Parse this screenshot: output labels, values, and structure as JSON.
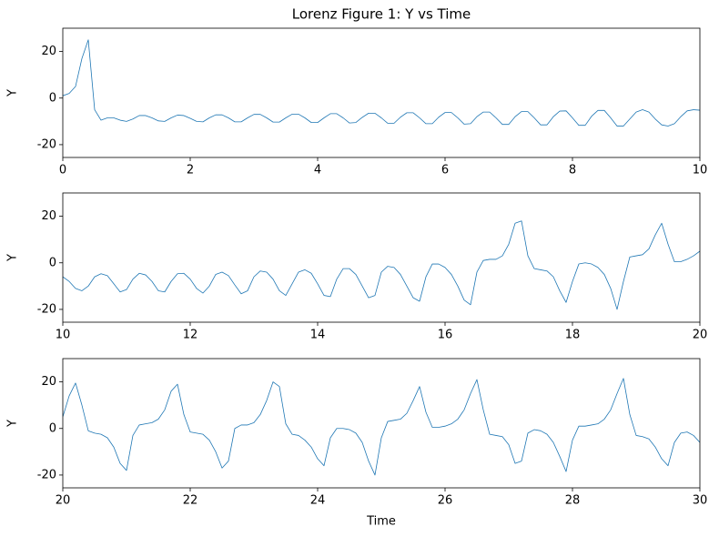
{
  "chart_data": [
    {
      "type": "line",
      "title": "Lorenz Figure 1: Y vs Time",
      "ylabel": "Y",
      "xlim": [
        0,
        10
      ],
      "ylim": [
        -25.5,
        30
      ],
      "xticks": [
        0,
        2,
        4,
        6,
        8,
        10
      ],
      "yticks": [
        -20,
        0,
        20
      ],
      "x": [
        0,
        0.1,
        0.2,
        0.3,
        0.4,
        0.5,
        0.6,
        0.7,
        0.8,
        0.9,
        1,
        1.1,
        1.2,
        1.3,
        1.4,
        1.5,
        1.6,
        1.7,
        1.8,
        1.9,
        2,
        2.1,
        2.2,
        2.3,
        2.4,
        2.5,
        2.6,
        2.7,
        2.8,
        2.9,
        3,
        3.1,
        3.2,
        3.3,
        3.4,
        3.5,
        3.6,
        3.7,
        3.8,
        3.9,
        4,
        4.1,
        4.2,
        4.3,
        4.4,
        4.5,
        4.6,
        4.7,
        4.8,
        4.9,
        5,
        5.1,
        5.2,
        5.3,
        5.4,
        5.5,
        5.6,
        5.7,
        5.8,
        5.9,
        6,
        6.1,
        6.2,
        6.3,
        6.4,
        6.5,
        6.6,
        6.7,
        6.8,
        6.9,
        7,
        7.1,
        7.2,
        7.3,
        7.4,
        7.5,
        7.6,
        7.7,
        7.8,
        7.9,
        8,
        8.1,
        8.2,
        8.3,
        8.4,
        8.5,
        8.6,
        8.7,
        8.8,
        8.9,
        9,
        9.1,
        9.2,
        9.3,
        9.4,
        9.5,
        9.6,
        9.7,
        9.8,
        9.9,
        10
      ],
      "series": [
        {
          "color": "#1f77b4",
          "values": [
            1,
            2,
            5,
            17,
            25,
            -5,
            -9.5,
            -8.5,
            -8.5,
            -9.5,
            -10,
            -9,
            -7.5,
            -7.5,
            -8.5,
            -9.8,
            -10,
            -8.5,
            -7.3,
            -7.5,
            -8.7,
            -10,
            -10.2,
            -8.5,
            -7.2,
            -7.2,
            -8.5,
            -10.2,
            -10.2,
            -8.5,
            -7,
            -7,
            -8.5,
            -10.3,
            -10.3,
            -8.5,
            -6.9,
            -6.9,
            -8.5,
            -10.5,
            -10.5,
            -8.5,
            -6.7,
            -6.7,
            -8.5,
            -10.7,
            -10.5,
            -8.3,
            -6.5,
            -6.5,
            -8.5,
            -10.8,
            -10.8,
            -8.2,
            -6.3,
            -6.3,
            -8.5,
            -11,
            -11,
            -8.2,
            -6.2,
            -6.2,
            -8.5,
            -11.2,
            -11,
            -8,
            -6,
            -6,
            -8.5,
            -11.3,
            -11.3,
            -8,
            -5.8,
            -5.8,
            -8.5,
            -11.5,
            -11.5,
            -8,
            -5.6,
            -5.5,
            -8.5,
            -11.7,
            -11.7,
            -7.8,
            -5.3,
            -5.3,
            -8.5,
            -12,
            -12,
            -9,
            -6,
            -5,
            -6,
            -9,
            -11.5,
            -12,
            -11,
            -8,
            -5.5,
            -5,
            -5.2
          ]
        }
      ]
    },
    {
      "type": "line",
      "ylabel": "Y",
      "xlim": [
        10,
        20
      ],
      "ylim": [
        -25.5,
        30
      ],
      "xticks": [
        10,
        12,
        14,
        16,
        18,
        20
      ],
      "yticks": [
        -20,
        0,
        20
      ],
      "x": [
        10,
        10.1,
        10.2,
        10.3,
        10.4,
        10.5,
        10.6,
        10.7,
        10.8,
        10.9,
        11,
        11.1,
        11.2,
        11.3,
        11.4,
        11.5,
        11.6,
        11.7,
        11.8,
        11.9,
        12,
        12.1,
        12.2,
        12.3,
        12.4,
        12.5,
        12.6,
        12.7,
        12.8,
        12.9,
        13,
        13.1,
        13.2,
        13.3,
        13.4,
        13.5,
        13.6,
        13.7,
        13.8,
        13.9,
        14,
        14.1,
        14.2,
        14.3,
        14.4,
        14.5,
        14.6,
        14.7,
        14.8,
        14.9,
        15,
        15.1,
        15.2,
        15.3,
        15.4,
        15.5,
        15.6,
        15.7,
        15.8,
        15.9,
        16,
        16.1,
        16.2,
        16.3,
        16.4,
        16.5,
        16.6,
        16.7,
        16.8,
        16.9,
        17,
        17.1,
        17.2,
        17.3,
        17.4,
        17.5,
        17.6,
        17.7,
        17.8,
        17.9,
        18,
        18.1,
        18.2,
        18.3,
        18.4,
        18.5,
        18.6,
        18.7,
        18.8,
        18.9,
        19,
        19.1,
        19.2,
        19.3,
        19.4,
        19.5,
        19.6,
        19.7,
        19.8,
        19.9,
        20
      ],
      "series": [
        {
          "color": "#1f77b4",
          "values": [
            -6,
            -8,
            -11,
            -12,
            -10,
            -6,
            -4.7,
            -5.5,
            -9,
            -12.5,
            -11.5,
            -7,
            -4.5,
            -5.2,
            -8,
            -12,
            -12.5,
            -8,
            -4.7,
            -4.5,
            -7,
            -11,
            -13,
            -10,
            -5,
            -4,
            -5.5,
            -9.5,
            -13.3,
            -12,
            -6,
            -3.5,
            -4,
            -7,
            -12,
            -14,
            -9,
            -4,
            -3,
            -4.5,
            -9,
            -14,
            -14.5,
            -7,
            -2.5,
            -2.5,
            -5,
            -10,
            -15,
            -14,
            -4,
            -1.5,
            -2,
            -5,
            -10,
            -15,
            -16.5,
            -6,
            -0.5,
            -0.5,
            -2,
            -5,
            -10,
            -16,
            -18,
            -4,
            1,
            1.5,
            1.5,
            3,
            8,
            17,
            18,
            3,
            -2.5,
            -3,
            -3.5,
            -6,
            -12,
            -17,
            -8,
            -0.5,
            0,
            -0.5,
            -2,
            -5,
            -11,
            -20,
            -8,
            2.5,
            3,
            3.5,
            6,
            12,
            17,
            8,
            0.5,
            0.5,
            1.5,
            3,
            5
          ]
        }
      ]
    },
    {
      "type": "line",
      "ylabel": "Y",
      "xlabel": "Time",
      "xlim": [
        20,
        30
      ],
      "ylim": [
        -25.5,
        30
      ],
      "xticks": [
        20,
        22,
        24,
        26,
        28,
        30
      ],
      "yticks": [
        -20,
        0,
        20
      ],
      "x": [
        20,
        20.1,
        20.2,
        20.3,
        20.4,
        20.5,
        20.6,
        20.7,
        20.8,
        20.9,
        21,
        21.1,
        21.2,
        21.3,
        21.4,
        21.5,
        21.6,
        21.7,
        21.8,
        21.9,
        22,
        22.1,
        22.2,
        22.3,
        22.4,
        22.5,
        22.6,
        22.7,
        22.8,
        22.9,
        23,
        23.1,
        23.2,
        23.3,
        23.4,
        23.5,
        23.6,
        23.7,
        23.8,
        23.9,
        24,
        24.1,
        24.2,
        24.3,
        24.4,
        24.5,
        24.6,
        24.7,
        24.8,
        24.9,
        25,
        25.1,
        25.2,
        25.3,
        25.4,
        25.5,
        25.6,
        25.7,
        25.8,
        25.9,
        26,
        26.1,
        26.2,
        26.3,
        26.4,
        26.5,
        26.6,
        26.7,
        26.8,
        26.9,
        27,
        27.1,
        27.2,
        27.3,
        27.4,
        27.5,
        27.6,
        27.7,
        27.8,
        27.9,
        28,
        28.1,
        28.2,
        28.3,
        28.4,
        28.5,
        28.6,
        28.7,
        28.8,
        28.9,
        29,
        29.1,
        29.2,
        29.3,
        29.4,
        29.5,
        29.6,
        29.7,
        29.8,
        29.9,
        30
      ],
      "series": [
        {
          "color": "#1f77b4",
          "values": [
            5,
            14,
            19.5,
            10,
            -1,
            -2,
            -2.5,
            -4,
            -8,
            -15,
            -18,
            -3,
            1.5,
            2,
            2.5,
            4,
            8,
            16,
            19,
            6,
            -1.5,
            -2,
            -2.5,
            -5,
            -10,
            -17,
            -14,
            0,
            1.5,
            1.5,
            2.5,
            6,
            12,
            20,
            18,
            2,
            -2.5,
            -3,
            -5,
            -8,
            -13,
            -16,
            -4,
            0,
            0,
            -0.5,
            -2,
            -6,
            -14,
            -20,
            -4,
            3,
            3.5,
            4,
            6.5,
            12,
            18,
            7,
            0.5,
            0.5,
            1,
            2,
            4,
            8,
            15,
            21,
            8,
            -2.5,
            -3,
            -3.5,
            -7,
            -15,
            -14,
            -2,
            -0.5,
            -1,
            -2.5,
            -6,
            -12,
            -18.5,
            -5,
            1,
            1,
            1.5,
            2,
            4,
            8,
            15,
            21.5,
            6,
            -3,
            -3.5,
            -4.5,
            -8,
            -13,
            -16,
            -6,
            -2,
            -1.5,
            -3,
            -6
          ]
        }
      ]
    }
  ]
}
